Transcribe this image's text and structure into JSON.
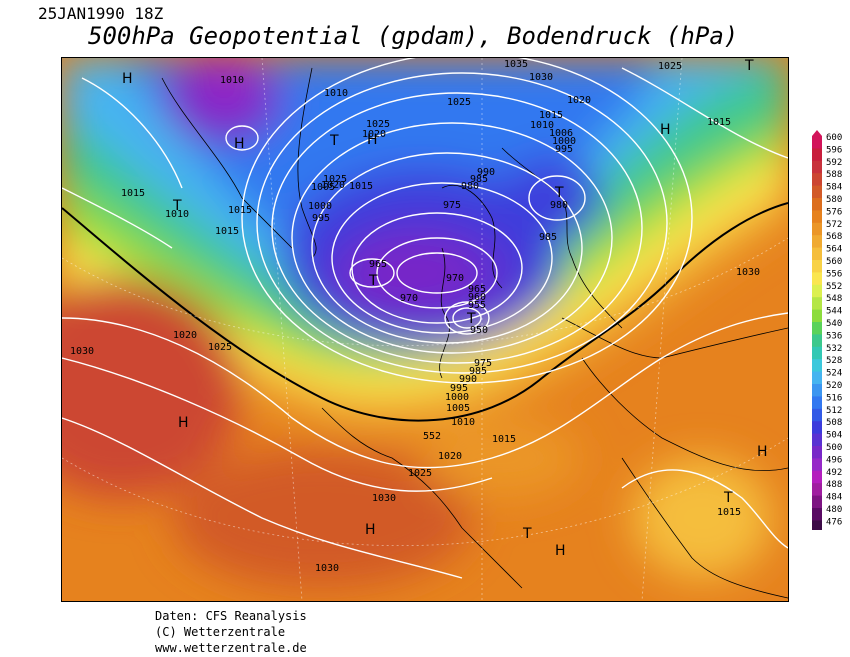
{
  "header": {
    "date": "25JAN1990 18Z",
    "title": "500hPa Geopotential (gpdam), Bodendruck (hPa)"
  },
  "footer": {
    "line1": "Daten: CFS Reanalysis",
    "line2": "(C) Wetterzentrale",
    "line3": "www.wetterzentrale.de"
  },
  "legend": {
    "values": [
      "600",
      "596",
      "592",
      "588",
      "584",
      "580",
      "576",
      "572",
      "568",
      "564",
      "560",
      "556",
      "552",
      "548",
      "544",
      "540",
      "536",
      "532",
      "528",
      "524",
      "520",
      "516",
      "512",
      "508",
      "504",
      "500",
      "496",
      "492",
      "488",
      "484",
      "480",
      "476"
    ],
    "colors": [
      "#d2145a",
      "#c81e3c",
      "#c8323c",
      "#cc4632",
      "#d25a28",
      "#dc6e1e",
      "#e6821e",
      "#eb9628",
      "#f0aa32",
      "#f5be3c",
      "#f8d246",
      "#fae650",
      "#dcf050",
      "#b4e646",
      "#8cdc3c",
      "#5ad25a",
      "#3cc88c",
      "#32c8b4",
      "#3cc8dc",
      "#46b4f0",
      "#3c96f0",
      "#3278f0",
      "#325ae6",
      "#3c3cdc",
      "#5a32d2",
      "#7828c8",
      "#9628c8",
      "#b41ebe",
      "#a01ea0",
      "#7d1482",
      "#5a0a64",
      "#3c0a46"
    ]
  },
  "map": {
    "pressure_labels": [
      {
        "text": "1010"
      },
      {
        "text": "1010"
      },
      {
        "text": "1035"
      },
      {
        "text": "1030"
      },
      {
        "text": "1025"
      },
      {
        "text": "1025"
      },
      {
        "text": "1020"
      },
      {
        "text": "1015"
      },
      {
        "text": "1010"
      },
      {
        "text": "1006"
      },
      {
        "text": "1000"
      },
      {
        "text": "995"
      },
      {
        "text": "1025"
      },
      {
        "text": "1020"
      },
      {
        "text": "1015"
      },
      {
        "text": "1025"
      },
      {
        "text": "1020"
      },
      {
        "text": "1015"
      },
      {
        "text": "1005"
      },
      {
        "text": "1000"
      },
      {
        "text": "995"
      },
      {
        "text": "990"
      },
      {
        "text": "985"
      },
      {
        "text": "980"
      },
      {
        "text": "975"
      },
      {
        "text": "980"
      },
      {
        "text": "985"
      },
      {
        "text": "1015"
      },
      {
        "text": "1015"
      },
      {
        "text": "1010"
      },
      {
        "text": "1015"
      },
      {
        "text": "1015"
      },
      {
        "text": "965"
      },
      {
        "text": "970"
      },
      {
        "text": "970"
      },
      {
        "text": "965"
      },
      {
        "text": "960"
      },
      {
        "text": "955"
      },
      {
        "text": "950"
      },
      {
        "text": "1030"
      },
      {
        "text": "1020"
      },
      {
        "text": "1025"
      },
      {
        "text": "1030"
      },
      {
        "text": "975"
      },
      {
        "text": "985"
      },
      {
        "text": "990"
      },
      {
        "text": "995"
      },
      {
        "text": "1000"
      },
      {
        "text": "1005"
      },
      {
        "text": "1010"
      },
      {
        "text": "1015"
      },
      {
        "text": "552"
      },
      {
        "text": "1020"
      },
      {
        "text": "1025"
      },
      {
        "text": "1030"
      },
      {
        "text": "1030"
      },
      {
        "text": "1015"
      }
    ],
    "pressure_centers": [
      {
        "text": "H"
      },
      {
        "text": "H"
      },
      {
        "text": "T"
      },
      {
        "text": "H"
      },
      {
        "text": "H"
      },
      {
        "text": "T"
      },
      {
        "text": "T"
      },
      {
        "text": "T"
      },
      {
        "text": "T"
      },
      {
        "text": "H"
      },
      {
        "text": "H"
      },
      {
        "text": "H"
      },
      {
        "text": "T"
      },
      {
        "text": "H"
      },
      {
        "text": "T"
      },
      {
        "text": "H"
      },
      {
        "text": "H"
      },
      {
        "text": "T"
      }
    ]
  }
}
